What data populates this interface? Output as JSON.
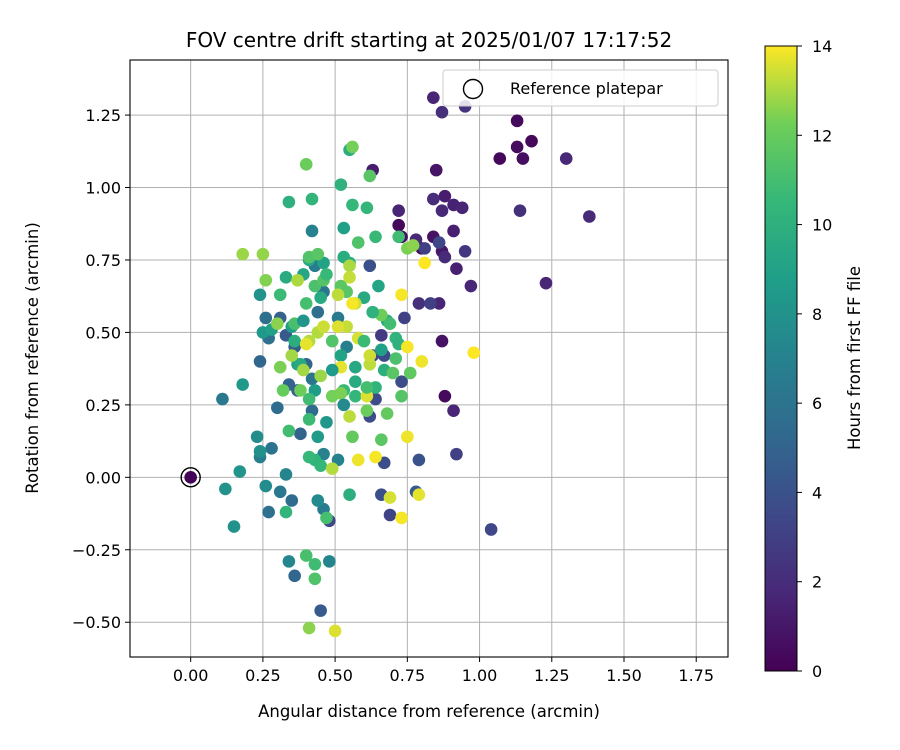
{
  "chart_data": {
    "type": "scatter",
    "title": "FOV centre drift starting at 2025/01/07 17:17:52",
    "xlabel": "Angular distance from reference (arcmin)",
    "ylabel": "Rotation from reference (arcmin)",
    "colorbar_label": "Hours from first FF file",
    "xlim": [
      -0.21,
      1.86
    ],
    "ylim": [
      -0.62,
      1.44
    ],
    "xticks": [
      "0.00",
      "0.25",
      "0.50",
      "0.75",
      "1.00",
      "1.25",
      "1.50",
      "1.75"
    ],
    "yticks": [
      "−0.50",
      "−0.25",
      "0.00",
      "0.25",
      "0.50",
      "0.75",
      "1.00",
      "1.25"
    ],
    "colorbar_range": [
      0,
      14
    ],
    "colorbar_ticks": [
      "0",
      "2",
      "4",
      "6",
      "8",
      "10",
      "12",
      "14"
    ],
    "colormap": "viridis",
    "grid": true,
    "legend": {
      "position": "top-right",
      "label": "Reference platepar"
    },
    "reference_point": {
      "x": 0.0,
      "y": 0.0
    },
    "points": [
      [
        0.0,
        0.0,
        0.2
      ],
      [
        0.72,
        0.87,
        0.3
      ],
      [
        0.73,
        0.83,
        0.5
      ],
      [
        0.8,
        0.79,
        0.4
      ],
      [
        0.84,
        0.83,
        0.8
      ],
      [
        0.87,
        0.78,
        1.0
      ],
      [
        0.88,
        0.28,
        0.4
      ],
      [
        0.87,
        0.47,
        0.8
      ],
      [
        1.07,
        1.1,
        0.3
      ],
      [
        1.13,
        1.23,
        0.4
      ],
      [
        1.13,
        1.14,
        0.5
      ],
      [
        1.15,
        1.1,
        0.6
      ],
      [
        1.18,
        1.16,
        0.3
      ],
      [
        0.85,
        1.06,
        0.9
      ],
      [
        0.63,
        1.06,
        1.2
      ],
      [
        0.88,
        0.97,
        1.3
      ],
      [
        0.91,
        0.94,
        1.5
      ],
      [
        0.94,
        0.93,
        1.6
      ],
      [
        0.87,
        0.92,
        1.8
      ],
      [
        0.72,
        0.92,
        1.6
      ],
      [
        0.84,
        0.96,
        2.0
      ],
      [
        0.91,
        0.85,
        1.4
      ],
      [
        0.84,
        1.31,
        1.6
      ],
      [
        0.87,
        1.26,
        2.1
      ],
      [
        0.95,
        1.28,
        2.4
      ],
      [
        1.3,
        1.1,
        1.8
      ],
      [
        1.38,
        0.9,
        1.9
      ],
      [
        1.14,
        0.92,
        2.2
      ],
      [
        1.23,
        0.67,
        1.7
      ],
      [
        0.97,
        0.66,
        1.7
      ],
      [
        0.92,
        0.72,
        1.4
      ],
      [
        0.88,
        0.76,
        1.9
      ],
      [
        0.95,
        0.78,
        2.6
      ],
      [
        0.86,
        0.6,
        1.6
      ],
      [
        0.79,
        0.6,
        2.1
      ],
      [
        0.91,
        0.23,
        1.6
      ],
      [
        0.83,
        0.6,
        3.0
      ],
      [
        0.81,
        0.79,
        3.0
      ],
      [
        0.86,
        0.81,
        3.4
      ],
      [
        0.78,
        0.82,
        1.8
      ],
      [
        0.66,
        0.49,
        2.7
      ],
      [
        0.74,
        0.55,
        3.1
      ],
      [
        0.62,
        0.73,
        3.9
      ],
      [
        0.67,
        0.42,
        3.5
      ],
      [
        0.73,
        0.33,
        3.8
      ],
      [
        0.64,
        0.27,
        3.6
      ],
      [
        0.62,
        0.21,
        3.7
      ],
      [
        0.63,
        0.42,
        3.4
      ],
      [
        0.92,
        0.08,
        3.0
      ],
      [
        1.04,
        -0.18,
        3.4
      ],
      [
        0.67,
        0.05,
        3.8
      ],
      [
        0.79,
        0.06,
        4.0
      ],
      [
        0.66,
        -0.06,
        3.9
      ],
      [
        0.78,
        -0.05,
        4.4
      ],
      [
        0.69,
        -0.13,
        3.2
      ],
      [
        0.48,
        -0.15,
        3.4
      ],
      [
        0.45,
        -0.46,
        4.5
      ],
      [
        0.36,
        -0.34,
        5.2
      ],
      [
        0.38,
        0.15,
        5.0
      ],
      [
        0.4,
        0.39,
        5.1
      ],
      [
        0.42,
        0.23,
        5.4
      ],
      [
        0.36,
        0.45,
        4.7
      ],
      [
        0.33,
        0.49,
        4.4
      ],
      [
        0.31,
        0.55,
        4.9
      ],
      [
        0.26,
        0.55,
        5.7
      ],
      [
        0.24,
        0.4,
        5.2
      ],
      [
        0.27,
        0.48,
        5.8
      ],
      [
        0.3,
        0.24,
        5.5
      ],
      [
        0.34,
        0.32,
        5.0
      ],
      [
        0.37,
        0.3,
        4.8
      ],
      [
        0.35,
        -0.08,
        5.6
      ],
      [
        0.27,
        -0.12,
        5.8
      ],
      [
        0.31,
        -0.05,
        6.4
      ],
      [
        0.28,
        0.1,
        6.0
      ],
      [
        0.11,
        0.27,
        6.3
      ],
      [
        0.24,
        0.07,
        6.8
      ],
      [
        0.42,
        0.34,
        6.2
      ],
      [
        0.44,
        0.57,
        5.8
      ],
      [
        0.46,
        0.64,
        6.1
      ],
      [
        0.51,
        0.55,
        6.4
      ],
      [
        0.43,
        0.73,
        6.6
      ],
      [
        0.42,
        0.85,
        6.9
      ],
      [
        0.54,
        0.45,
        6.8
      ],
      [
        0.46,
        0.08,
        6.9
      ],
      [
        0.51,
        0.06,
        7.0
      ],
      [
        0.46,
        -0.11,
        6.6
      ],
      [
        0.48,
        -0.29,
        7.2
      ],
      [
        0.34,
        -0.29,
        7.3
      ],
      [
        0.44,
        -0.08,
        7.5
      ],
      [
        0.33,
        0.01,
        7.2
      ],
      [
        0.26,
        -0.03,
        7.6
      ],
      [
        0.23,
        0.14,
        7.7
      ],
      [
        0.24,
        0.09,
        7.9
      ],
      [
        0.12,
        -0.04,
        8.0
      ],
      [
        0.15,
        -0.17,
        8.0
      ],
      [
        0.17,
        0.02,
        8.2
      ],
      [
        0.18,
        0.32,
        8.4
      ],
      [
        0.24,
        0.63,
        8.0
      ],
      [
        0.25,
        0.5,
        8.4
      ],
      [
        0.28,
        0.51,
        8.8
      ],
      [
        0.35,
        0.52,
        8.7
      ],
      [
        0.37,
        0.39,
        9.0
      ],
      [
        0.39,
        0.7,
        9.3
      ],
      [
        0.41,
        0.75,
        9.4
      ],
      [
        0.46,
        0.74,
        9.1
      ],
      [
        0.45,
        0.62,
        9.5
      ],
      [
        0.53,
        0.76,
        9.7
      ],
      [
        0.55,
        0.74,
        9.9
      ],
      [
        0.53,
        0.86,
        8.9
      ],
      [
        0.55,
        1.13,
        9.8
      ],
      [
        0.6,
        0.62,
        9.5
      ],
      [
        0.65,
        0.66,
        9.2
      ],
      [
        0.66,
        0.44,
        8.9
      ],
      [
        0.68,
        0.54,
        9.7
      ],
      [
        0.57,
        0.33,
        9.6
      ],
      [
        0.57,
        0.38,
        9.4
      ],
      [
        0.52,
        0.42,
        9.1
      ],
      [
        0.43,
        0.3,
        8.7
      ],
      [
        0.44,
        0.14,
        8.6
      ],
      [
        0.47,
        0.19,
        8.3
      ],
      [
        0.38,
        0.39,
        9.5
      ],
      [
        0.36,
        0.47,
        9.8
      ],
      [
        0.33,
        0.69,
        9.6
      ],
      [
        0.34,
        0.95,
        10.0
      ],
      [
        0.42,
        0.96,
        10.3
      ],
      [
        0.52,
        1.01,
        10.1
      ],
      [
        0.56,
        0.94,
        10.5
      ],
      [
        0.61,
        0.93,
        10.4
      ],
      [
        0.64,
        0.83,
        10.6
      ],
      [
        0.72,
        0.83,
        10.8
      ],
      [
        0.71,
        0.48,
        10.2
      ],
      [
        0.72,
        0.46,
        10.0
      ],
      [
        0.67,
        0.37,
        9.9
      ],
      [
        0.64,
        0.31,
        10.2
      ],
      [
        0.57,
        0.28,
        10.4
      ],
      [
        0.53,
        0.3,
        10.6
      ],
      [
        0.41,
        0.27,
        10.8
      ],
      [
        0.41,
        0.2,
        10.7
      ],
      [
        0.43,
        0.06,
        10.2
      ],
      [
        0.45,
        0.04,
        10.4
      ],
      [
        0.55,
        -0.06,
        9.9
      ],
      [
        0.41,
        0.07,
        10.5
      ],
      [
        0.33,
        -0.12,
        10.3
      ],
      [
        0.43,
        -0.3,
        10.8
      ],
      [
        0.4,
        -0.27,
        11.1
      ],
      [
        0.43,
        -0.35,
        11.3
      ],
      [
        0.47,
        -0.14,
        11.0
      ],
      [
        0.34,
        0.16,
        10.9
      ],
      [
        0.4,
        0.6,
        11.0
      ],
      [
        0.43,
        0.66,
        11.2
      ],
      [
        0.41,
        0.76,
        11.4
      ],
      [
        0.44,
        0.77,
        11.6
      ],
      [
        0.46,
        0.68,
        11.5
      ],
      [
        0.52,
        0.66,
        11.7
      ],
      [
        0.54,
        0.64,
        11.6
      ],
      [
        0.62,
        1.04,
        11.6
      ],
      [
        0.4,
        1.08,
        12.1
      ],
      [
        0.56,
        1.14,
        12.3
      ],
      [
        0.75,
        0.79,
        12.4
      ],
      [
        0.77,
        0.8,
        12.6
      ],
      [
        0.76,
        0.36,
        11.8
      ],
      [
        0.7,
        0.36,
        11.6
      ],
      [
        0.73,
        0.28,
        11.5
      ],
      [
        0.68,
        0.22,
        11.9
      ],
      [
        0.66,
        0.13,
        11.7
      ],
      [
        0.56,
        0.14,
        11.9
      ],
      [
        0.61,
        0.23,
        12.1
      ],
      [
        0.49,
        0.28,
        12.3
      ],
      [
        0.38,
        0.3,
        12.2
      ],
      [
        0.32,
        0.3,
        12.0
      ],
      [
        0.31,
        0.38,
        12.4
      ],
      [
        0.3,
        0.53,
        12.6
      ],
      [
        0.26,
        0.68,
        12.5
      ],
      [
        0.25,
        0.77,
        12.7
      ],
      [
        0.18,
        0.77,
        12.8
      ],
      [
        0.39,
        0.37,
        12.9
      ],
      [
        0.37,
        0.68,
        13.0
      ],
      [
        0.44,
        0.5,
        13.1
      ],
      [
        0.51,
        0.63,
        13.2
      ],
      [
        0.55,
        0.73,
        13.0
      ],
      [
        0.55,
        0.69,
        13.3
      ],
      [
        0.57,
        0.6,
        13.4
      ],
      [
        0.62,
        0.39,
        13.2
      ],
      [
        0.58,
        0.48,
        13.5
      ],
      [
        0.54,
        0.52,
        13.3
      ],
      [
        0.51,
        0.52,
        13.6
      ],
      [
        0.46,
        0.52,
        13.4
      ],
      [
        0.41,
        0.47,
        13.1
      ],
      [
        0.4,
        0.46,
        13.7
      ],
      [
        0.55,
        0.21,
        13.2
      ],
      [
        0.61,
        0.28,
        13.6
      ],
      [
        0.58,
        0.06,
        13.8
      ],
      [
        0.64,
        0.07,
        13.9
      ],
      [
        0.69,
        -0.07,
        13.5
      ],
      [
        0.73,
        -0.14,
        13.9
      ],
      [
        0.79,
        -0.06,
        13.7
      ],
      [
        0.75,
        0.14,
        13.8
      ],
      [
        0.73,
        0.63,
        13.9
      ],
      [
        0.75,
        0.45,
        13.9
      ],
      [
        0.8,
        0.4,
        13.8
      ],
      [
        0.81,
        0.74,
        14.0
      ],
      [
        0.98,
        0.43,
        14.0
      ],
      [
        0.52,
        0.38,
        13.7
      ],
      [
        0.56,
        0.6,
        13.9
      ],
      [
        0.62,
        0.42,
        13.4
      ],
      [
        0.49,
        0.03,
        13.1
      ],
      [
        0.45,
        0.35,
        12.8
      ],
      [
        0.41,
        -0.52,
        12.6
      ],
      [
        0.5,
        -0.53,
        13.6
      ],
      [
        0.35,
        0.42,
        12.9
      ],
      [
        0.52,
        0.29,
        12.4
      ],
      [
        0.66,
        0.56,
        12.2
      ],
      [
        0.71,
        0.41,
        11.2
      ],
      [
        0.69,
        0.53,
        10.9
      ],
      [
        0.6,
        0.47,
        10.7
      ],
      [
        0.58,
        0.81,
        11.3
      ],
      [
        0.63,
        0.57,
        10.1
      ],
      [
        0.31,
        0.63,
        10.7
      ],
      [
        0.47,
        0.7,
        10.6
      ],
      [
        0.49,
        0.47,
        11.4
      ],
      [
        0.36,
        0.53,
        11.1
      ],
      [
        0.39,
        0.54,
        8.2
      ],
      [
        0.49,
        0.37,
        8.5
      ],
      [
        0.53,
        0.25,
        7.5
      ],
      [
        0.61,
        0.31,
        11.0
      ]
    ]
  }
}
